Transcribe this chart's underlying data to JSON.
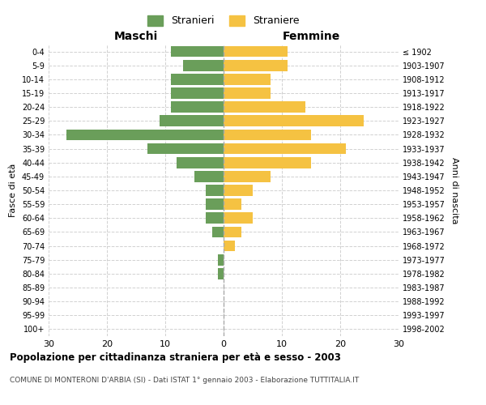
{
  "age_groups": [
    "0-4",
    "5-9",
    "10-14",
    "15-19",
    "20-24",
    "25-29",
    "30-34",
    "35-39",
    "40-44",
    "45-49",
    "50-54",
    "55-59",
    "60-64",
    "65-69",
    "70-74",
    "75-79",
    "80-84",
    "85-89",
    "90-94",
    "95-99",
    "100+"
  ],
  "birth_years": [
    "1998-2002",
    "1993-1997",
    "1988-1992",
    "1983-1987",
    "1978-1982",
    "1973-1977",
    "1968-1972",
    "1963-1967",
    "1958-1962",
    "1953-1957",
    "1948-1952",
    "1943-1947",
    "1938-1942",
    "1933-1937",
    "1928-1932",
    "1923-1927",
    "1918-1922",
    "1913-1917",
    "1908-1912",
    "1903-1907",
    "≤ 1902"
  ],
  "maschi": [
    9,
    7,
    9,
    9,
    9,
    11,
    27,
    13,
    8,
    5,
    3,
    3,
    3,
    2,
    0,
    1,
    1,
    0,
    0,
    0,
    0
  ],
  "femmine": [
    11,
    11,
    8,
    8,
    14,
    24,
    15,
    21,
    15,
    8,
    5,
    3,
    5,
    3,
    2,
    0,
    0,
    0,
    0,
    0,
    0
  ],
  "color_maschi": "#6a9e5a",
  "color_femmine": "#f5c242",
  "background_color": "#ffffff",
  "grid_color": "#cccccc",
  "title": "Popolazione per cittadinanza straniera per età e sesso - 2003",
  "subtitle": "COMUNE DI MONTERONI D'ARBIA (SI) - Dati ISTAT 1° gennaio 2003 - Elaborazione TUTTITALIA.IT",
  "xlabel_left": "Maschi",
  "xlabel_right": "Femmine",
  "ylabel_left": "Fasce di età",
  "ylabel_right": "Anni di nascita",
  "xlim": 30,
  "legend_stranieri": "Stranieri",
  "legend_straniere": "Straniere"
}
